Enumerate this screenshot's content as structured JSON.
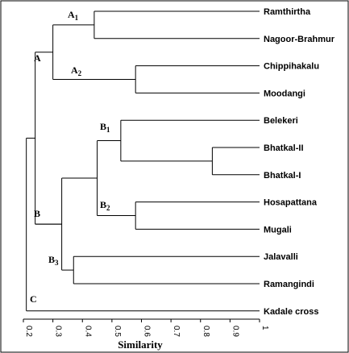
{
  "chart_data": {
    "type": "dendrogram",
    "xlabel": "Similarity",
    "xlim": [
      0.2,
      1
    ],
    "ticks": [
      "0.2",
      "0.3",
      "0.4",
      "0.5",
      "0.6",
      "0.7",
      "0.8",
      "0.9",
      "1"
    ],
    "leaves": [
      {
        "id": "L1",
        "name": "Ramthirtha"
      },
      {
        "id": "L2",
        "name": "Nagoor-Brahmur"
      },
      {
        "id": "L3",
        "name": "Chippihakalu"
      },
      {
        "id": "L4",
        "name": "Moodangi"
      },
      {
        "id": "L5",
        "name": "Belekeri"
      },
      {
        "id": "L6",
        "name": "Bhatkal-II"
      },
      {
        "id": "L7",
        "name": "Bhatkal-I"
      },
      {
        "id": "L8",
        "name": "Hosapattana"
      },
      {
        "id": "L9",
        "name": "Mugali"
      },
      {
        "id": "L10",
        "name": "Jalavalli"
      },
      {
        "id": "L11",
        "name": "Ramangindi"
      },
      {
        "id": "L12",
        "name": "Kadale cross"
      }
    ],
    "merges": [
      {
        "id": "A1",
        "similarity": 0.44,
        "children": [
          "L1",
          "L2"
        ]
      },
      {
        "id": "A2",
        "similarity": 0.58,
        "children": [
          "L3",
          "L4"
        ]
      },
      {
        "id": "A",
        "similarity": 0.3,
        "children": [
          "A1",
          "A2"
        ]
      },
      {
        "id": "n67",
        "similarity": 0.84,
        "children": [
          "L6",
          "L7"
        ]
      },
      {
        "id": "B1",
        "similarity": 0.53,
        "children": [
          "L5",
          "n67"
        ]
      },
      {
        "id": "B2",
        "similarity": 0.58,
        "children": [
          "L8",
          "L9"
        ]
      },
      {
        "id": "nB12",
        "similarity": 0.45,
        "children": [
          "B1",
          "B2"
        ]
      },
      {
        "id": "B3",
        "similarity": 0.37,
        "children": [
          "L10",
          "L11"
        ]
      },
      {
        "id": "nB",
        "similarity": 0.33,
        "children": [
          "nB12",
          "B3"
        ]
      },
      {
        "id": "B",
        "similarity": 0.24,
        "children": [
          "nB"
        ]
      },
      {
        "id": "nAB",
        "similarity": 0.24,
        "children": [
          "A",
          "nB"
        ]
      },
      {
        "id": "root",
        "similarity": 0.21,
        "children": [
          "nAB",
          "L12"
        ]
      }
    ],
    "cluster_labels": [
      {
        "node": "A1",
        "main": "A",
        "sub": "1"
      },
      {
        "node": "A2",
        "main": "A",
        "sub": "2"
      },
      {
        "node": "A",
        "main": "A",
        "sub": ""
      },
      {
        "node": "B1",
        "main": "B",
        "sub": "1"
      },
      {
        "node": "B2",
        "main": "B",
        "sub": "2"
      },
      {
        "node": "B",
        "main": "B",
        "sub": ""
      },
      {
        "node": "B3",
        "main": "B",
        "sub": "3"
      },
      {
        "node": "C",
        "main": "C",
        "sub": ""
      }
    ]
  }
}
